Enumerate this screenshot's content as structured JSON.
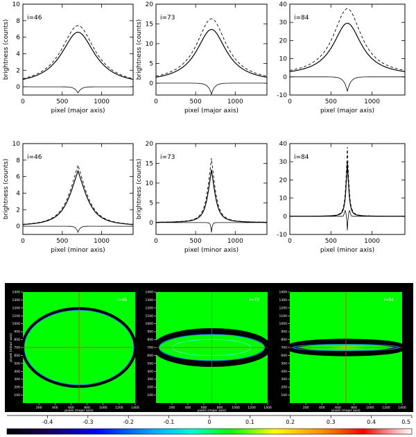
{
  "chart_data": [
    {
      "type": "line",
      "id": "p1",
      "panel_label": "i=46",
      "xlabel": "pixel (major axis)",
      "ylabel": "brightness (counts)",
      "xlim": [
        0,
        1400
      ],
      "ylim": [
        -1,
        10
      ],
      "xticks": [
        0,
        500,
        1000
      ],
      "yticks": [
        0,
        2,
        4,
        6,
        8,
        10
      ],
      "profile": {
        "center": 700,
        "peak_solid": 6.6,
        "peak_dashed": 7.4,
        "base": 0.1,
        "width": 260,
        "kind": "major",
        "residual_min": -0.75
      }
    },
    {
      "type": "line",
      "id": "p2",
      "panel_label": "i=73",
      "xlabel": "pixel (major axis)",
      "ylabel": "brightness (counts)",
      "xlim": [
        0,
        1400
      ],
      "ylim": [
        -3,
        20
      ],
      "xticks": [
        0,
        500,
        1000
      ],
      "yticks": [
        0,
        5,
        10,
        15,
        20
      ],
      "profile": {
        "center": 700,
        "peak_solid": 13.6,
        "peak_dashed": 16.3,
        "base": 0.2,
        "width": 230,
        "kind": "major",
        "residual_min": -2.8
      }
    },
    {
      "type": "line",
      "id": "p3",
      "panel_label": "i=84",
      "xlabel": "pixel (major axis)",
      "ylabel": "",
      "xlim": [
        0,
        1400
      ],
      "ylim": [
        -10,
        40
      ],
      "xticks": [
        0,
        500,
        1000
      ],
      "yticks": [
        -10,
        0,
        10,
        20,
        30,
        40
      ],
      "profile": {
        "center": 700,
        "peak_solid": 29.5,
        "peak_dashed": 37.5,
        "base": 0.5,
        "width": 210,
        "kind": "major",
        "residual_min": -8.0
      }
    },
    {
      "type": "line",
      "id": "p4",
      "panel_label": "i=46",
      "xlabel": "pixel (minor axis)",
      "ylabel": "brightness (counts)",
      "xlim": [
        0,
        1400
      ],
      "ylim": [
        -1,
        10
      ],
      "xticks": [
        0,
        500,
        1000
      ],
      "yticks": [
        0,
        2,
        4,
        6,
        8,
        10
      ],
      "profile": {
        "center": 700,
        "peak_solid": 6.7,
        "peak_dashed": 7.4,
        "base": 0.0,
        "width": 170,
        "kind": "minor",
        "residual_min": -0.75
      }
    },
    {
      "type": "line",
      "id": "p5",
      "panel_label": "i=73",
      "xlabel": "pixel (minor axis)",
      "ylabel": "brightness (counts)",
      "xlim": [
        0,
        1400
      ],
      "ylim": [
        -3,
        20
      ],
      "xticks": [
        0,
        500,
        1000
      ],
      "yticks": [
        0,
        5,
        10,
        15,
        20
      ],
      "profile": {
        "center": 700,
        "peak_solid": 13.4,
        "peak_dashed": 16.3,
        "base": 0.0,
        "width": 70,
        "kind": "minor",
        "residual_min": -2.5
      }
    },
    {
      "type": "line",
      "id": "p6",
      "panel_label": "i=84",
      "xlabel": "pixel (minor axis)",
      "ylabel": "",
      "xlim": [
        0,
        1400
      ],
      "ylim": [
        -10,
        40
      ],
      "xticks": [
        0,
        500,
        1000
      ],
      "yticks": [
        -10,
        0,
        10,
        20,
        30,
        40
      ],
      "profile": {
        "center": 700,
        "peak_solid": 30.0,
        "peak_dashed": 38.0,
        "base": 0.0,
        "width": 25,
        "kind": "minor",
        "residual_min": -8.0
      }
    },
    {
      "type": "heatmap",
      "id": "m1",
      "panel_label": "i=46",
      "xlabel": "pixels (major axis)",
      "ylabel": "pixels (minor axis)",
      "xlim": [
        0,
        1400
      ],
      "ylim": [
        0,
        1400
      ],
      "xticks": [
        200,
        400,
        600,
        800,
        1000,
        1200,
        1400
      ],
      "yticks": [
        100,
        200,
        300,
        400,
        500,
        600,
        700,
        800,
        900,
        1000,
        1100,
        1200,
        1300,
        1400
      ],
      "ellipse": {
        "cx": 700,
        "cy": 700,
        "rx": 700,
        "ry": 490
      }
    },
    {
      "type": "heatmap",
      "id": "m2",
      "panel_label": "i=73",
      "xlabel": "pixels (major axis)",
      "ylabel": "",
      "xlim": [
        0,
        1400
      ],
      "ylim": [
        0,
        1400
      ],
      "xticks": [
        200,
        400,
        600,
        800,
        1000,
        1200,
        1400
      ],
      "yticks": [
        100,
        200,
        300,
        400,
        500,
        600,
        700,
        800,
        900,
        1000,
        1100,
        1200,
        1300,
        1400
      ],
      "ellipse": {
        "cx": 700,
        "cy": 700,
        "rx": 700,
        "ry": 205
      }
    },
    {
      "type": "heatmap",
      "id": "m3",
      "panel_label": "i=84",
      "xlabel": "pixels (major axis)",
      "ylabel": "",
      "xlim": [
        0,
        1400
      ],
      "ylim": [
        0,
        1400
      ],
      "xticks": [
        200,
        400,
        600,
        800,
        1000,
        1200,
        1400
      ],
      "yticks": [
        100,
        200,
        300,
        400,
        500,
        600,
        700,
        800,
        900,
        1000,
        1100,
        1200,
        1300,
        1400
      ],
      "ellipse": {
        "cx": 700,
        "cy": 700,
        "rx": 700,
        "ry": 75
      }
    }
  ],
  "colorbar": {
    "range": [
      -0.5,
      0.5
    ],
    "tick_labels": [
      "-0.4",
      "-0.3",
      "-0.2",
      "-0.1",
      "0",
      "0.1",
      "0.2",
      "0.3",
      "0.4",
      "0.5"
    ]
  },
  "colors": {
    "panel_bg": "#000000",
    "map_background": "#00ff00",
    "crosshair": "#ff2a00",
    "line": "#000000"
  }
}
